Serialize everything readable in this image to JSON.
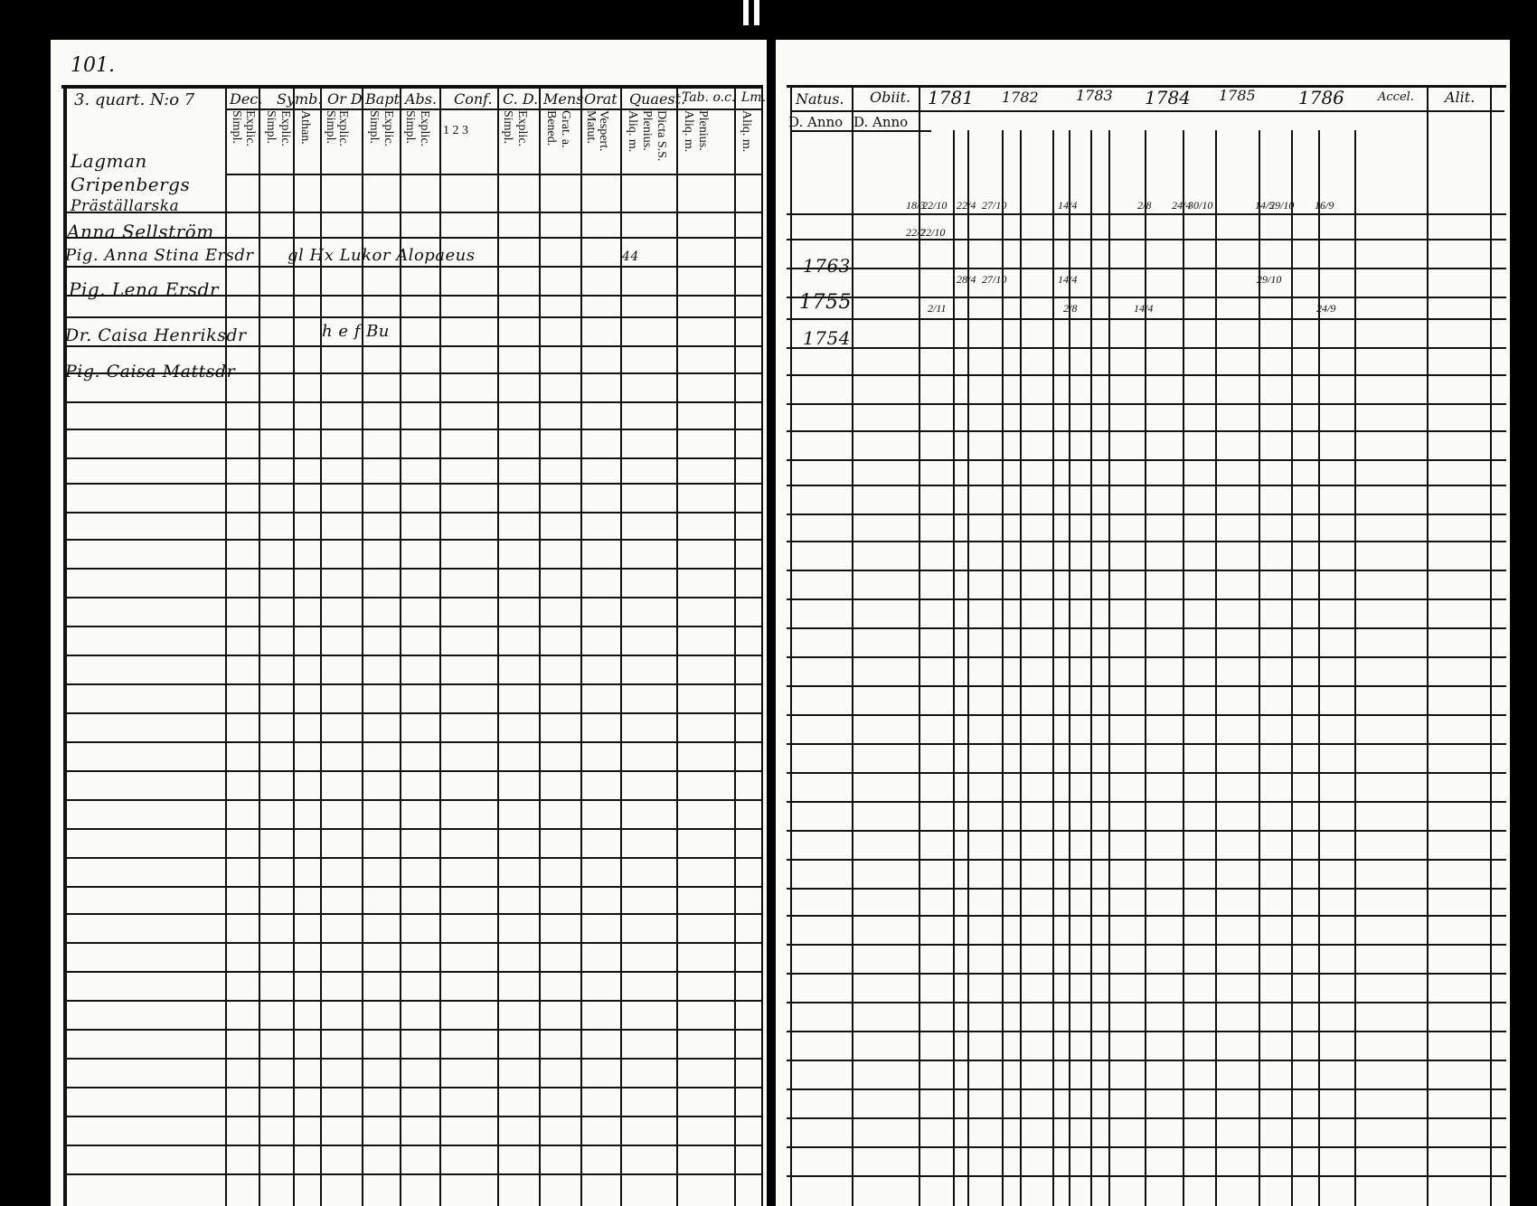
{
  "page_number": "101.",
  "left_page": {
    "household_label": "3. quart. N:o 7",
    "header_groups": [
      "Dec.",
      "Symb.",
      "Or D",
      "Bapt",
      "Abs.",
      "Conf.",
      "C. D.",
      "Mens",
      "Orat",
      "Quaest.",
      "Tab. o.c.",
      "Lm."
    ],
    "sub_headers": [
      "Simpl.",
      "Explic.",
      "Simpl.",
      "Explic.",
      "Athan.",
      "Simpl.",
      "Explic.",
      "Simpl.",
      "Explic.",
      "Simpl.",
      "Explic.",
      "1 2 3",
      "Simpl.",
      "Explic.",
      "Bened.",
      "Grat. a.",
      "Matut.",
      "Vespert.",
      "Aliq. m.",
      "Plenius.",
      "Dicta S.S.",
      "Aliq. m.",
      "Plenius.",
      "Aliq. m."
    ],
    "household_heading": [
      "Lagman",
      "Gripenbergs",
      "Präställarska"
    ],
    "entries": [
      {
        "name": "Anna Sellström",
        "notes": ""
      },
      {
        "name": "Pig. Anna Stina Ersdr",
        "notes": "gl Hx Lukor Alopaeus",
        "mark": "44"
      },
      {
        "name": "Pig. Lena Ersdr",
        "notes": ""
      },
      {
        "name": "Dr. Caisa Henriksdr",
        "notes": "h e f Bu"
      },
      {
        "name": "Pig. Caisa Mattsdr",
        "notes": ""
      }
    ]
  },
  "right_page": {
    "header_columns": [
      "Natus.",
      "Obiit.",
      "1781",
      "1782",
      "1783",
      "1784",
      "1785",
      "1786",
      "Accel.",
      "Alit."
    ],
    "sub_headers": [
      "D. Anno",
      "D. Anno"
    ],
    "birth_years": [
      "1763",
      "1755",
      "1754"
    ],
    "marks": [
      [
        "18/3",
        "22/10",
        "22/4",
        "27/10",
        "14/4",
        "2/8",
        "24/4",
        "30/10",
        "14/5",
        "29/10",
        "16/9"
      ],
      [
        "22/7",
        "22/10"
      ],
      [
        "28/4",
        "27/10",
        "14/4",
        "29/10"
      ],
      [
        "2/11",
        "2/8",
        "14/4",
        "24/9"
      ]
    ]
  }
}
